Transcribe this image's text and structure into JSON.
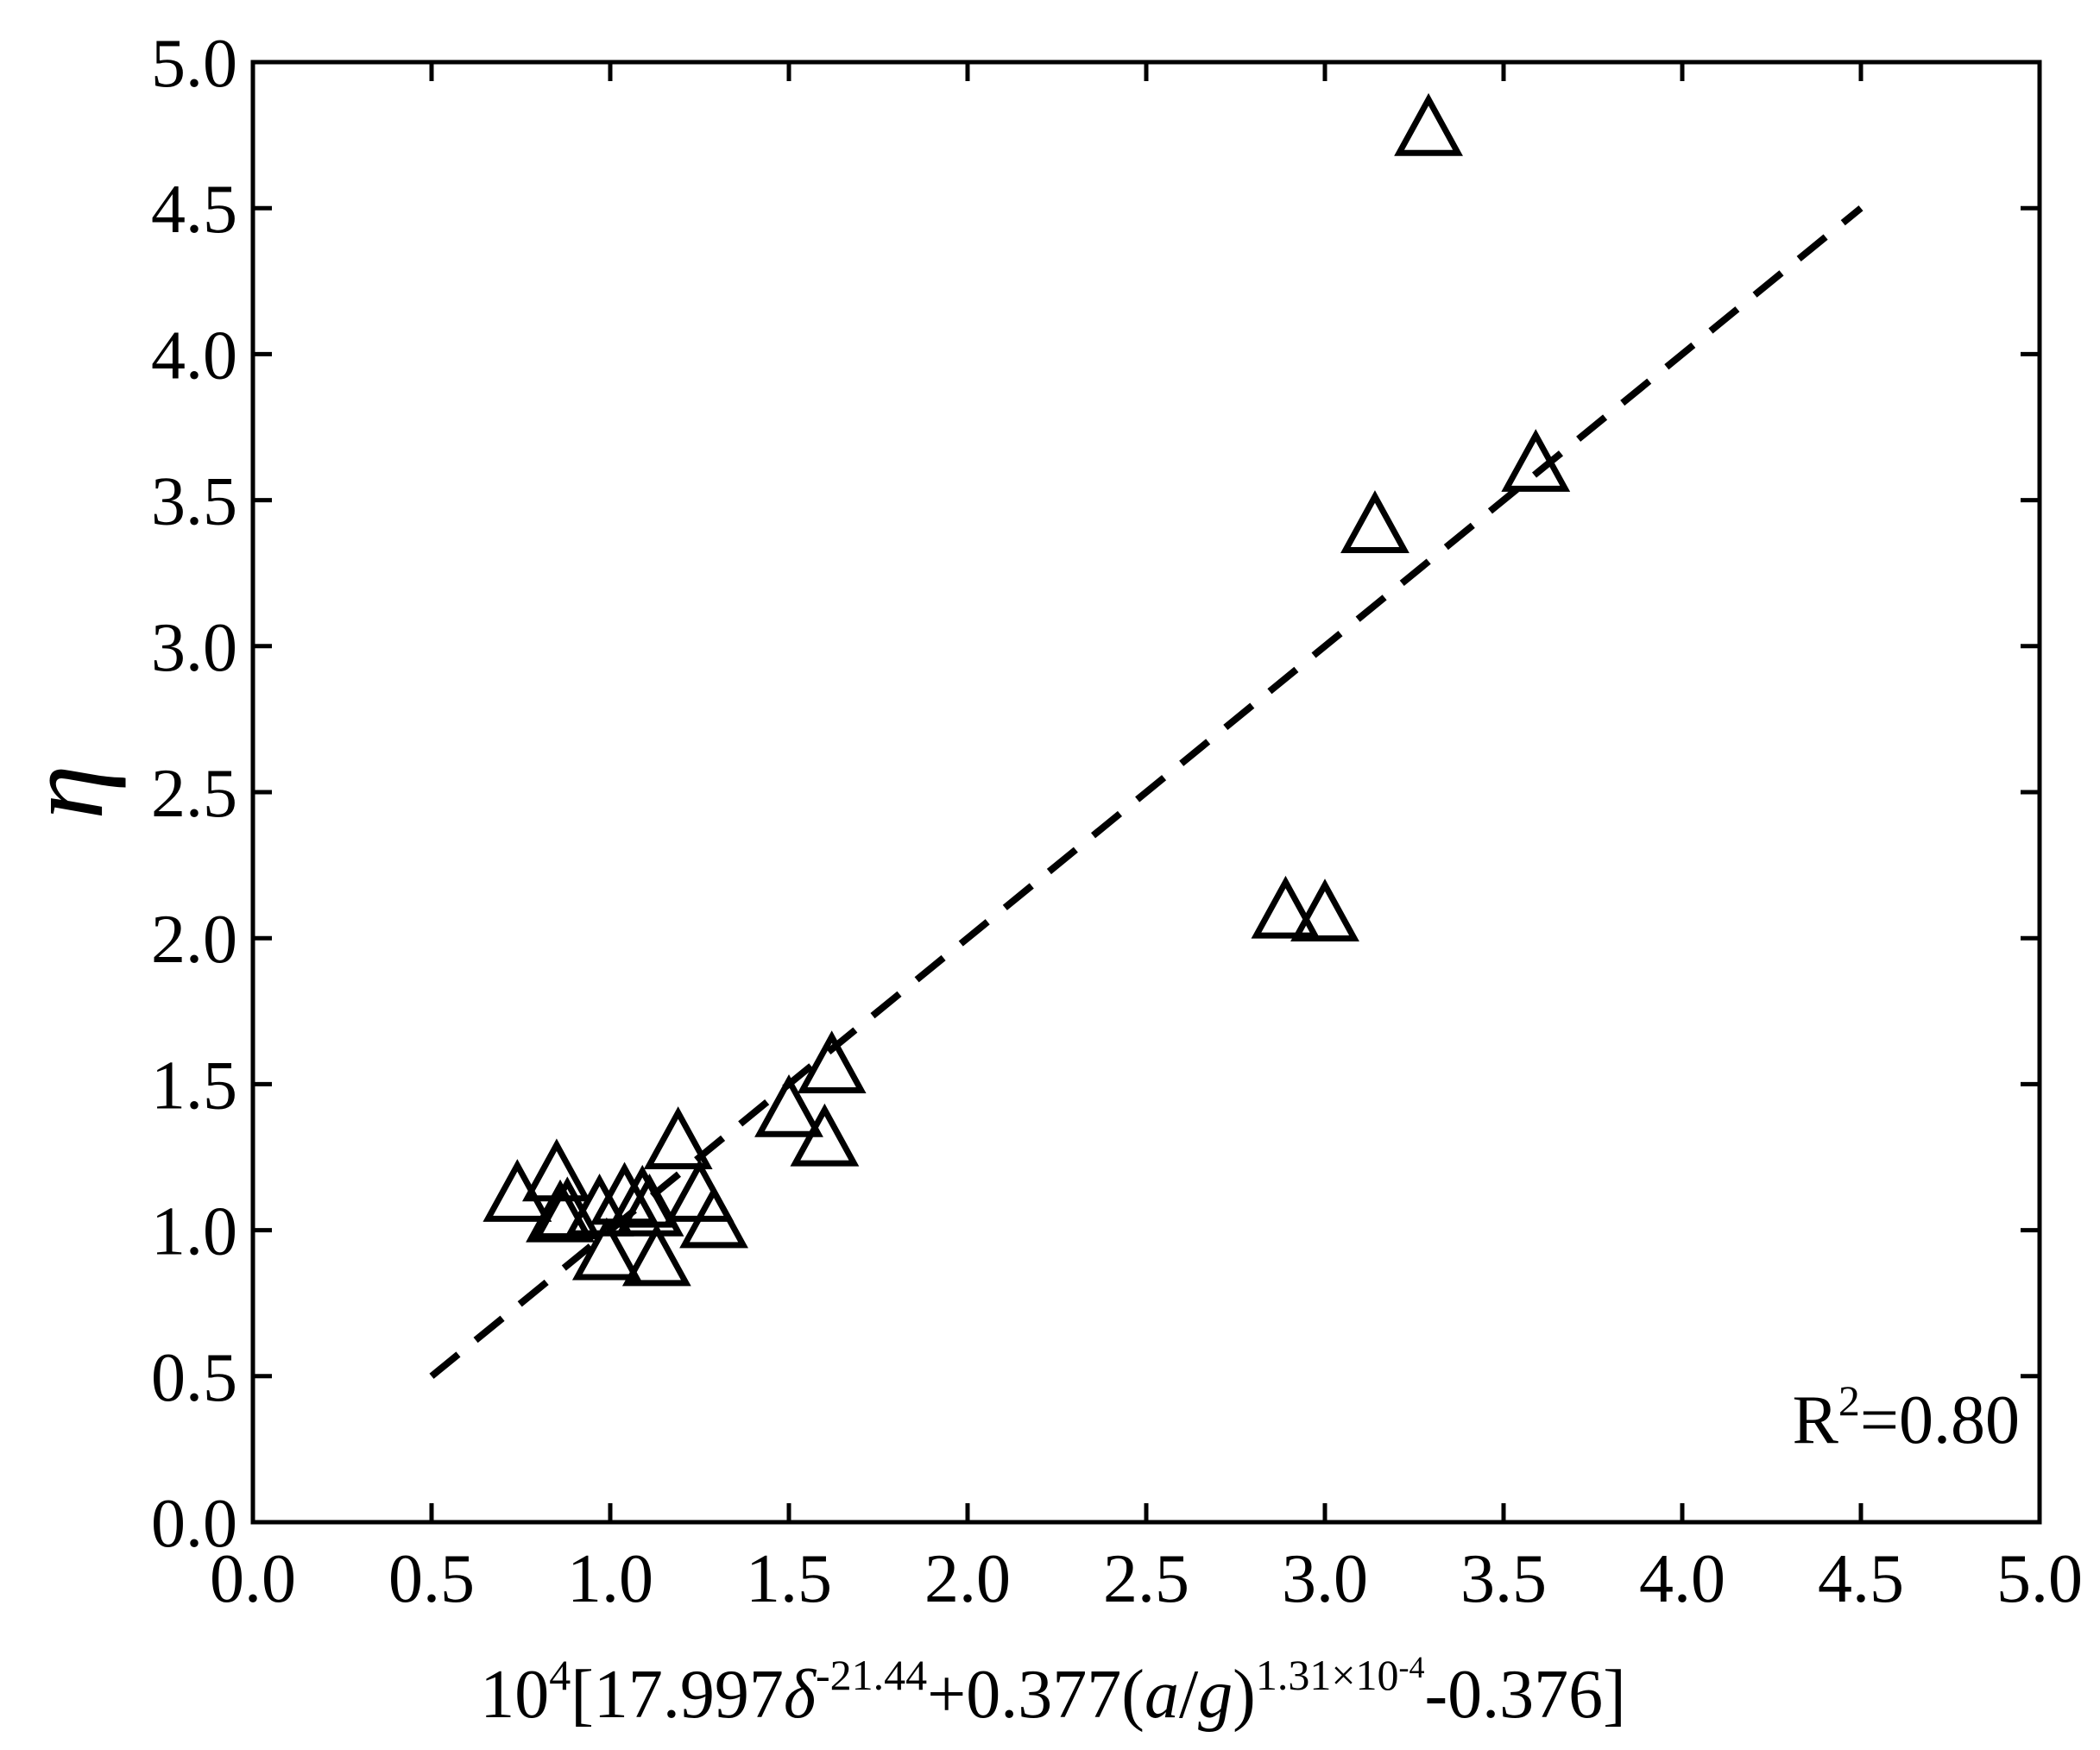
{
  "chart_data": {
    "type": "scatter",
    "xlabel": {
      "base": "10",
      "exp": "4",
      "p1": "[17.997",
      "delta": "δ",
      "delta_exp": "-21.44",
      "p2": "+0.377(",
      "a": "a",
      "slash": "/",
      "g": "g",
      "p3": ")",
      "exp2_a": "1.31×10",
      "exp2_b": "-4",
      "p4": "-0.376]"
    },
    "ylabel": "η",
    "xlim": [
      0,
      5
    ],
    "ylim": [
      0,
      5
    ],
    "xticks": [
      "0.0",
      "0.5",
      "1.0",
      "1.5",
      "2.0",
      "2.5",
      "3.0",
      "3.5",
      "4.0",
      "4.5",
      "5.0"
    ],
    "yticks": [
      "0.0",
      "0.5",
      "1.0",
      "1.5",
      "2.0",
      "2.5",
      "3.0",
      "3.5",
      "4.0",
      "4.5",
      "5.0"
    ],
    "grid": false,
    "series": [
      {
        "marker": "open-triangle",
        "points": [
          [
            0.74,
            1.11
          ],
          [
            0.85,
            1.18
          ],
          [
            0.86,
            1.04
          ],
          [
            0.88,
            1.05
          ],
          [
            0.97,
            1.06
          ],
          [
            0.99,
            0.91
          ],
          [
            1.04,
            1.1
          ],
          [
            1.09,
            1.09
          ],
          [
            1.11,
            1.06
          ],
          [
            1.13,
            0.89
          ],
          [
            1.19,
            1.29
          ],
          [
            1.25,
            1.11
          ],
          [
            1.29,
            1.02
          ],
          [
            1.5,
            1.4
          ],
          [
            1.6,
            1.3
          ],
          [
            1.62,
            1.55
          ],
          [
            2.89,
            2.08
          ],
          [
            3.0,
            2.07
          ],
          [
            3.14,
            3.4
          ],
          [
            3.29,
            4.76
          ],
          [
            3.59,
            3.61
          ]
        ]
      }
    ],
    "fit_line": {
      "style": "dashed",
      "x": [
        0.5,
        4.5
      ],
      "y": [
        0.5,
        4.5
      ]
    },
    "annotation": {
      "base": "R",
      "sup": "2",
      "rest": "=0.80",
      "position": "bottom-right"
    }
  }
}
